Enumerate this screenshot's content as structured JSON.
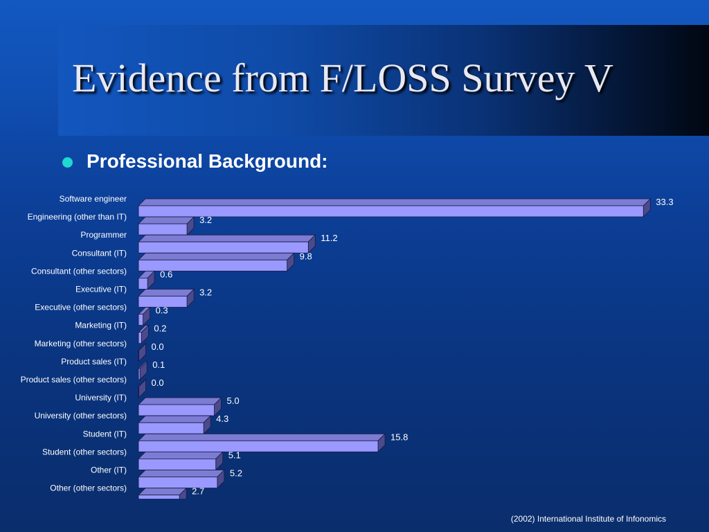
{
  "slide": {
    "title": "Evidence from F/LOSS Survey V",
    "subtitle": "Professional Background:",
    "footer": "(2002) International Institute of Infonomics"
  },
  "colors": {
    "bar_front": "#9999ff",
    "bar_top": "#7c7cd4",
    "bar_side": "#4a4a8c",
    "bar_outline": "#1a1a40",
    "bullet": "#1fd8d0"
  },
  "chart_data": {
    "type": "bar",
    "orientation": "horizontal",
    "categories": [
      "Software engineer",
      "Engineering (other than IT)",
      "Programmer",
      "Consultant (IT)",
      "Consultant (other sectors)",
      "Executive (IT)",
      "Executive (other sectors)",
      "Marketing (IT)",
      "Marketing (other sectors)",
      "Product sales (IT)",
      "Product sales (other sectors)",
      "University (IT)",
      "University (other sectors)",
      "Student (IT)",
      "Student (other sectors)",
      "Other (IT)",
      "Other (other sectors)"
    ],
    "values": [
      33.3,
      3.2,
      11.2,
      9.8,
      0.6,
      3.2,
      0.3,
      0.2,
      0.0,
      0.1,
      0.0,
      5.0,
      4.3,
      15.8,
      5.1,
      5.2,
      2.7
    ],
    "value_labels": [
      "33.3",
      "3.2",
      "11.2",
      "9.8",
      "0.6",
      "3.2",
      "0.3",
      "0.2",
      "0.0",
      "0.1",
      "0.0",
      "5.0",
      "4.3",
      "15.8",
      "5.1",
      "5.2",
      "2.7"
    ],
    "bar_style": "3d",
    "grid": false,
    "title": "",
    "xlabel": "",
    "ylabel": ""
  }
}
